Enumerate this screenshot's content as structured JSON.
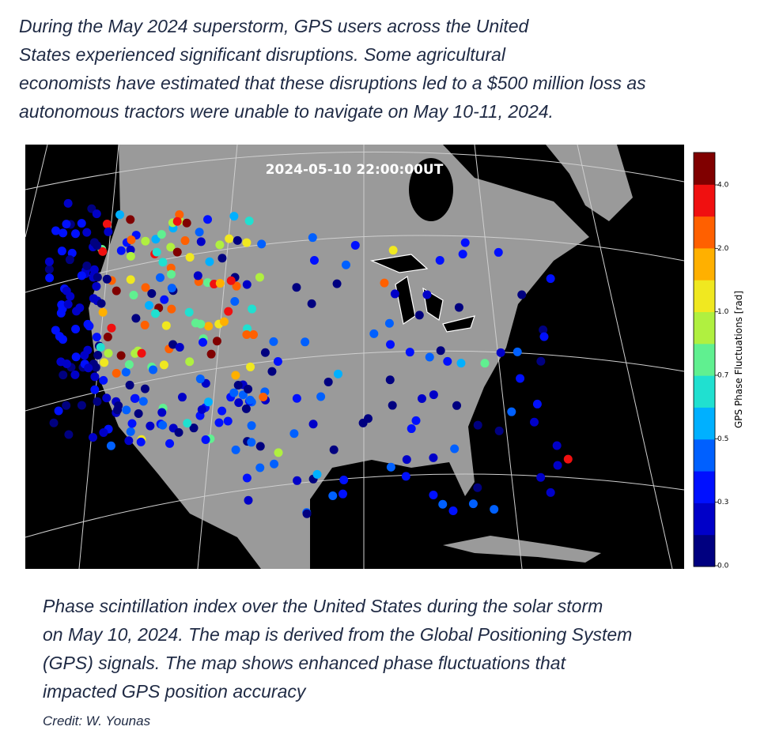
{
  "intro": {
    "lines": [
      "During the May 2024 superstorm, GPS users across the United",
      "States experienced significant disruptions. Some agricultural",
      "economists have estimated that these disruptions led to a $500 million loss  as",
      "autonomous tractors were unable to navigate on May 10-11, 2024."
    ]
  },
  "map": {
    "timestamp": "2024-05-10 22:00:00UT",
    "colorbar": {
      "label": "GPS Phase Fluctuations [rad]",
      "ticks": [
        "4.0",
        "2.0",
        "1.0",
        "0.7",
        "0.5",
        "0.3",
        "0.0"
      ]
    }
  },
  "caption": {
    "lines": [
      "Phase scintillation index over the United States during the solar storm",
      "on May 10, 2024. The map is derived from the Global Positioning System",
      "(GPS) signals. The map shows enhanced phase fluctuations that",
      "impacted GPS position accuracy"
    ],
    "credit": "Credit: W. Younas"
  }
}
